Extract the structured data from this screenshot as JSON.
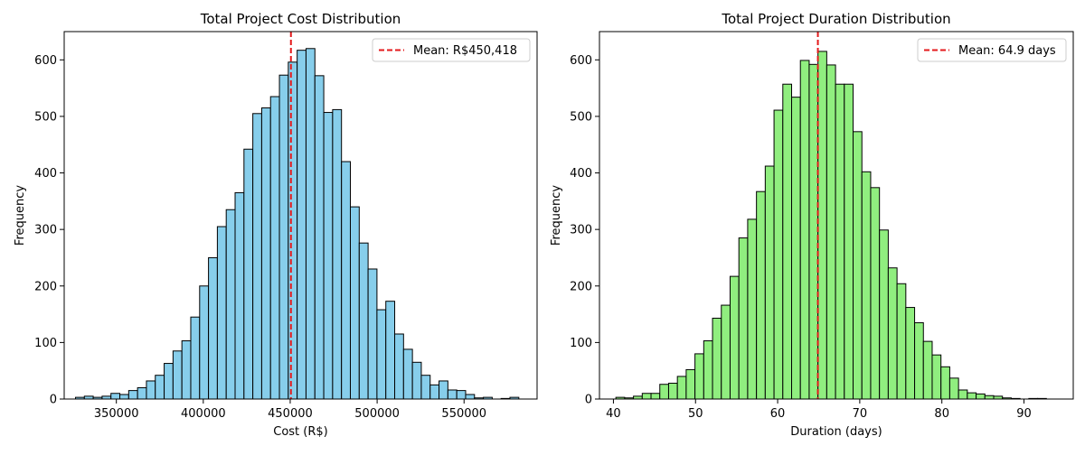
{
  "chart_data": [
    {
      "type": "bar",
      "title": "Total Project Cost Distribution",
      "xlabel": "Cost (R$)",
      "ylabel": "Frequency",
      "xlim": [
        320000,
        592000
      ],
      "ylim": [
        0,
        650
      ],
      "xticks": [
        350000,
        400000,
        450000,
        500000,
        550000
      ],
      "yticks": [
        0,
        100,
        200,
        300,
        400,
        500,
        600
      ],
      "bin_start": 326500,
      "bin_width": 5100,
      "values": [
        3,
        5,
        3,
        5,
        10,
        8,
        15,
        20,
        32,
        42,
        63,
        85,
        103,
        145,
        200,
        250,
        305,
        335,
        365,
        442,
        505,
        515,
        535,
        573,
        596,
        617,
        620,
        572,
        507,
        512,
        420,
        340,
        276,
        230,
        158,
        173,
        115,
        88,
        65,
        42,
        25,
        32,
        16,
        15,
        8,
        2,
        3,
        0,
        1,
        3
      ],
      "mean_line": {
        "x": 450418,
        "label": "Mean: R$450,418",
        "color": "#e41a1c"
      },
      "bar_color": "#87ceeb",
      "edge_color": "#000000",
      "grid": false,
      "legend_position": "upper right"
    },
    {
      "type": "bar",
      "title": "Total Project Duration Distribution",
      "xlabel": "Duration (days)",
      "ylabel": "Frequency",
      "xlim": [
        38.3,
        96.0
      ],
      "ylim": [
        0,
        650
      ],
      "xticks": [
        40,
        50,
        60,
        70,
        80,
        90
      ],
      "yticks": [
        0,
        100,
        200,
        300,
        400,
        500,
        600
      ],
      "bin_start": 40.3,
      "bin_width": 1.07,
      "values": [
        3,
        2,
        5,
        10,
        10,
        26,
        28,
        40,
        52,
        80,
        103,
        143,
        166,
        217,
        285,
        318,
        367,
        412,
        511,
        557,
        534,
        599,
        592,
        615,
        591,
        557,
        557,
        473,
        402,
        374,
        299,
        232,
        204,
        162,
        135,
        102,
        78,
        57,
        37,
        16,
        11,
        9,
        6,
        5,
        2,
        1,
        0,
        1,
        1
      ],
      "mean_line": {
        "x": 64.9,
        "label": "Mean: 64.9 days",
        "color": "#e41a1c"
      },
      "bar_color": "#90ee7f",
      "edge_color": "#000000",
      "grid": false,
      "legend_position": "upper right"
    }
  ]
}
